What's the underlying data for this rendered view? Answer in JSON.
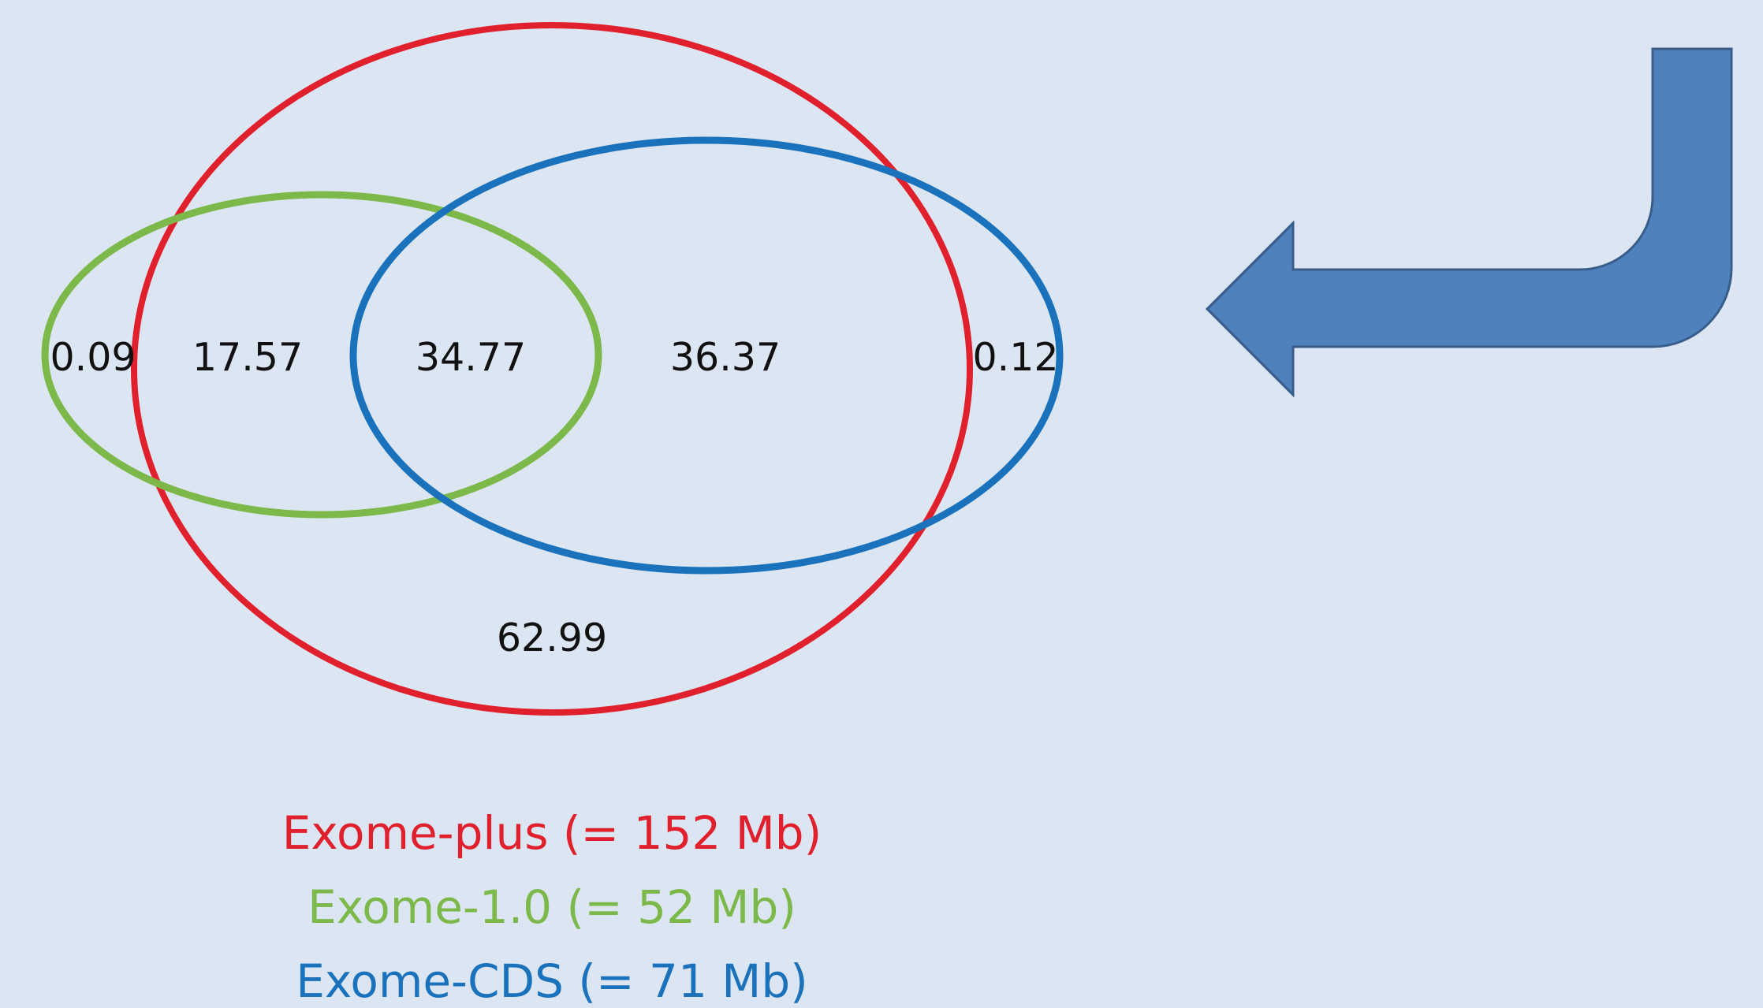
{
  "colors": {
    "background": "#dce6f2",
    "exome_plus": "#e0202c",
    "exome_1_0": "#7cb84a",
    "exome_cds": "#1a72bc",
    "arrow_fill": "#4f81bd",
    "arrow_stroke": "#385d8a"
  },
  "icons": {
    "arrow": "curved-return-arrow-icon"
  },
  "regions": {
    "green_only": "0.09",
    "red_green": "17.57",
    "red_green_blue": "34.77",
    "red_blue": "36.37",
    "blue_only": "0.12",
    "red_only": "62.99"
  },
  "legend": {
    "exome_plus": "Exome-plus (= 152 Mb)",
    "exome_1_0": "Exome-1.0 (= 52 Mb)",
    "exome_cds": "Exome-CDS (= 71 Mb)"
  }
}
